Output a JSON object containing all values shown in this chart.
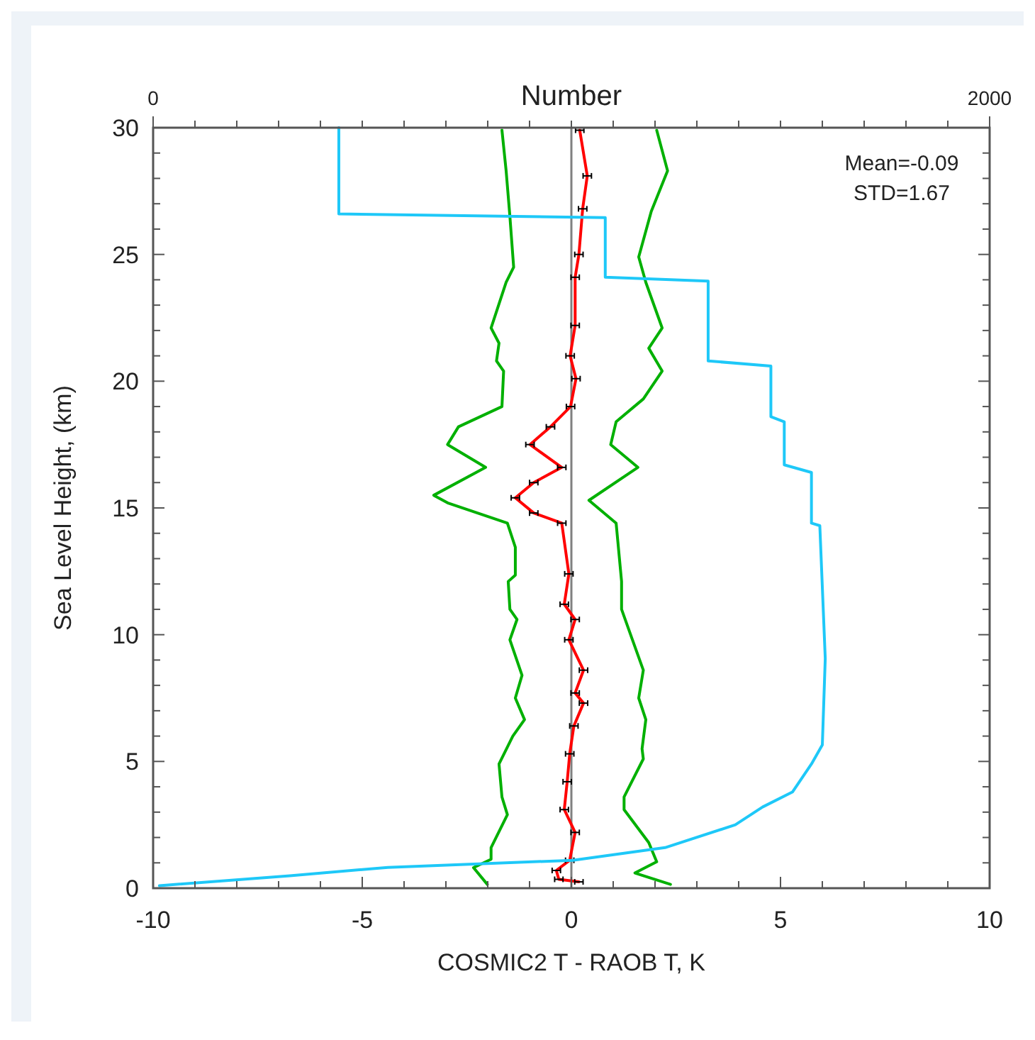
{
  "chart_data": {
    "type": "line",
    "xlabel": "COSMIC2 T - RAOB T, K",
    "ylabel": "Sea Level Height, (km)",
    "x2label": "Number",
    "xlim": [
      -10,
      10
    ],
    "ylim": [
      0,
      30
    ],
    "xticks": [
      -10,
      {
        "value": -9,
        "label": null
      },
      {
        "value": -8,
        "label": null
      },
      {
        "value": -7,
        "label": null
      },
      {
        "value": -6,
        "label": null
      },
      -5,
      {
        "value": -4,
        "label": null
      },
      {
        "value": -3,
        "label": null
      },
      {
        "value": -2,
        "label": null
      },
      {
        "value": -1,
        "label": null
      },
      0,
      {
        "value": 1,
        "label": null
      },
      {
        "value": 2,
        "label": null
      },
      {
        "value": 3,
        "label": null
      },
      {
        "value": 4,
        "label": null
      },
      5,
      {
        "value": 6,
        "label": null
      },
      {
        "value": 7,
        "label": null
      },
      {
        "value": 8,
        "label": null
      },
      {
        "value": 9,
        "label": null
      },
      10
    ],
    "yticks": [
      0,
      {
        "value": 1,
        "label": null
      },
      {
        "value": 2,
        "label": null
      },
      {
        "value": 3,
        "label": null
      },
      {
        "value": 4,
        "label": null
      },
      5,
      {
        "value": 6,
        "label": null
      },
      {
        "value": 7,
        "label": null
      },
      {
        "value": 8,
        "label": null
      },
      {
        "value": 9,
        "label": null
      },
      10,
      {
        "value": 11,
        "label": null
      },
      {
        "value": 12,
        "label": null
      },
      {
        "value": 13,
        "label": null
      },
      {
        "value": 14,
        "label": null
      },
      15,
      {
        "value": 16,
        "label": null
      },
      {
        "value": 17,
        "label": null
      },
      {
        "value": 18,
        "label": null
      },
      {
        "value": 19,
        "label": null
      },
      20,
      {
        "value": 21,
        "label": null
      },
      {
        "value": 22,
        "label": null
      },
      {
        "value": 23,
        "label": null
      },
      {
        "value": 24,
        "label": null
      },
      25,
      {
        "value": 26,
        "label": null
      },
      {
        "value": 27,
        "label": null
      },
      {
        "value": 28,
        "label": null
      },
      {
        "value": 29,
        "label": null
      },
      30
    ],
    "x2lim": [
      0,
      2000
    ],
    "x2ticks": [
      0,
      {
        "value": 100,
        "label": null
      },
      {
        "value": 200,
        "label": null
      },
      {
        "value": 300,
        "label": null
      },
      {
        "value": 400,
        "label": null
      },
      {
        "value": 500,
        "label": null
      },
      {
        "value": 600,
        "label": null
      },
      {
        "value": 700,
        "label": null
      },
      {
        "value": 800,
        "label": null
      },
      {
        "value": 900,
        "label": null
      },
      {
        "value": 1000,
        "label": null
      },
      {
        "value": 1100,
        "label": null
      },
      {
        "value": 1200,
        "label": null
      },
      {
        "value": 1300,
        "label": null
      },
      {
        "value": 1400,
        "label": null
      },
      {
        "value": 1500,
        "label": null
      },
      {
        "value": 1600,
        "label": null
      },
      {
        "value": 1700,
        "label": null
      },
      {
        "value": 1800,
        "label": null
      },
      {
        "value": 1900,
        "label": null
      },
      2000
    ],
    "grid": false,
    "marker": "none",
    "line_style": "solid",
    "ref_lines": [
      {
        "axis": "x",
        "value": 0,
        "color": "#808080"
      }
    ],
    "annotations": [
      "Mean=-0.09",
      "STD=1.67"
    ],
    "series": [
      {
        "color": "#00b000",
        "x": [
          -1.66,
          -1.56,
          -1.47,
          -1.38,
          -1.56,
          -1.92,
          -1.73,
          -1.79,
          -1.62,
          -1.66,
          -2.7,
          -2.96,
          -2.05,
          -3.29,
          -2.96,
          -1.53,
          -1.34,
          -1.34,
          -1.51,
          -1.47,
          -1.3,
          -1.47,
          -1.18,
          -1.34,
          -1.12,
          -1.4,
          -1.73,
          -1.66,
          -1.53,
          -1.92,
          -1.92,
          -2.34,
          -2.01
        ],
        "values": [
          29.9,
          28.3,
          26.5,
          24.5,
          23.9,
          22.1,
          21.5,
          20.8,
          20.4,
          19.0,
          18.2,
          17.5,
          16.6,
          15.5,
          15.2,
          14.4,
          13.45,
          12.35,
          12.1,
          11.0,
          10.6,
          9.8,
          8.4,
          7.5,
          6.65,
          6.0,
          4.9,
          3.6,
          2.9,
          1.6,
          1.14,
          0.81,
          0.15
        ]
      },
      {
        "color": "#00b000",
        "x": [
          2.04,
          2.3,
          1.91,
          1.61,
          1.78,
          2.17,
          1.85,
          2.17,
          1.72,
          1.07,
          0.94,
          1.59,
          0.42,
          1.07,
          1.2,
          1.2,
          1.46,
          1.72,
          1.61,
          1.78,
          1.69,
          1.72,
          1.26,
          1.26,
          1.85,
          2.04,
          1.52,
          2.37
        ],
        "values": [
          29.9,
          28.3,
          26.7,
          24.9,
          23.9,
          22.1,
          21.3,
          20.4,
          19.3,
          18.4,
          17.5,
          16.6,
          15.3,
          14.4,
          12.1,
          11.0,
          9.8,
          8.6,
          7.5,
          6.65,
          5.5,
          5.1,
          3.6,
          3.1,
          1.8,
          1.04,
          0.6,
          0.15
        ]
      },
      {
        "color": "#ff0000",
        "x": [
          0.2,
          0.38,
          0.27,
          0.18,
          0.09,
          0.09,
          -0.03,
          0.11,
          -0.02,
          -0.5,
          -0.99,
          -0.23,
          -0.9,
          -1.34,
          -0.9,
          -0.23,
          -0.06,
          -0.17,
          0.09,
          -0.06,
          0.29,
          0.09,
          0.29,
          0.06,
          -0.04,
          -0.1,
          -0.17,
          0.09,
          -0.04,
          -0.36,
          -0.3,
          0.18
        ],
        "values": [
          29.9,
          28.1,
          26.8,
          25.0,
          24.1,
          22.2,
          21.0,
          20.1,
          19.0,
          18.2,
          17.5,
          16.6,
          16.0,
          15.4,
          14.8,
          14.4,
          12.4,
          11.2,
          10.6,
          9.8,
          8.6,
          7.7,
          7.3,
          6.4,
          5.3,
          4.2,
          3.1,
          2.2,
          1.1,
          0.7,
          0.35,
          0.25
        ],
        "xerrors": [
          0.1,
          0.1,
          0.1,
          0.1,
          0.1,
          0.1,
          0.1,
          0.1,
          0.1,
          0.1,
          0.1,
          0.1,
          0.1,
          0.1,
          0.1,
          0.1,
          0.1,
          0.1,
          0.1,
          0.1,
          0.1,
          0.1,
          0.1,
          0.1,
          0.1,
          0.1,
          0.1,
          0.1,
          0.1,
          0.1,
          0.1,
          0.1
        ]
      },
      {
        "color": "#1ec8f8",
        "axis": "x2",
        "x": [
          444,
          444,
          1081,
          1081,
          1327,
          1327,
          1477,
          1477,
          1509,
          1509,
          1574,
          1574,
          1594,
          1607,
          1600,
          1574,
          1529,
          1457,
          1392,
          1224,
          1003,
          561,
          327,
          15
        ],
        "values": [
          30,
          26.6,
          26.45,
          24.1,
          23.95,
          20.8,
          20.6,
          18.6,
          18.4,
          16.7,
          16.4,
          14.4,
          14.3,
          9.06,
          5.65,
          4.9,
          3.8,
          3.2,
          2.5,
          1.6,
          1.1,
          0.82,
          0.49,
          0.1
        ]
      }
    ]
  }
}
